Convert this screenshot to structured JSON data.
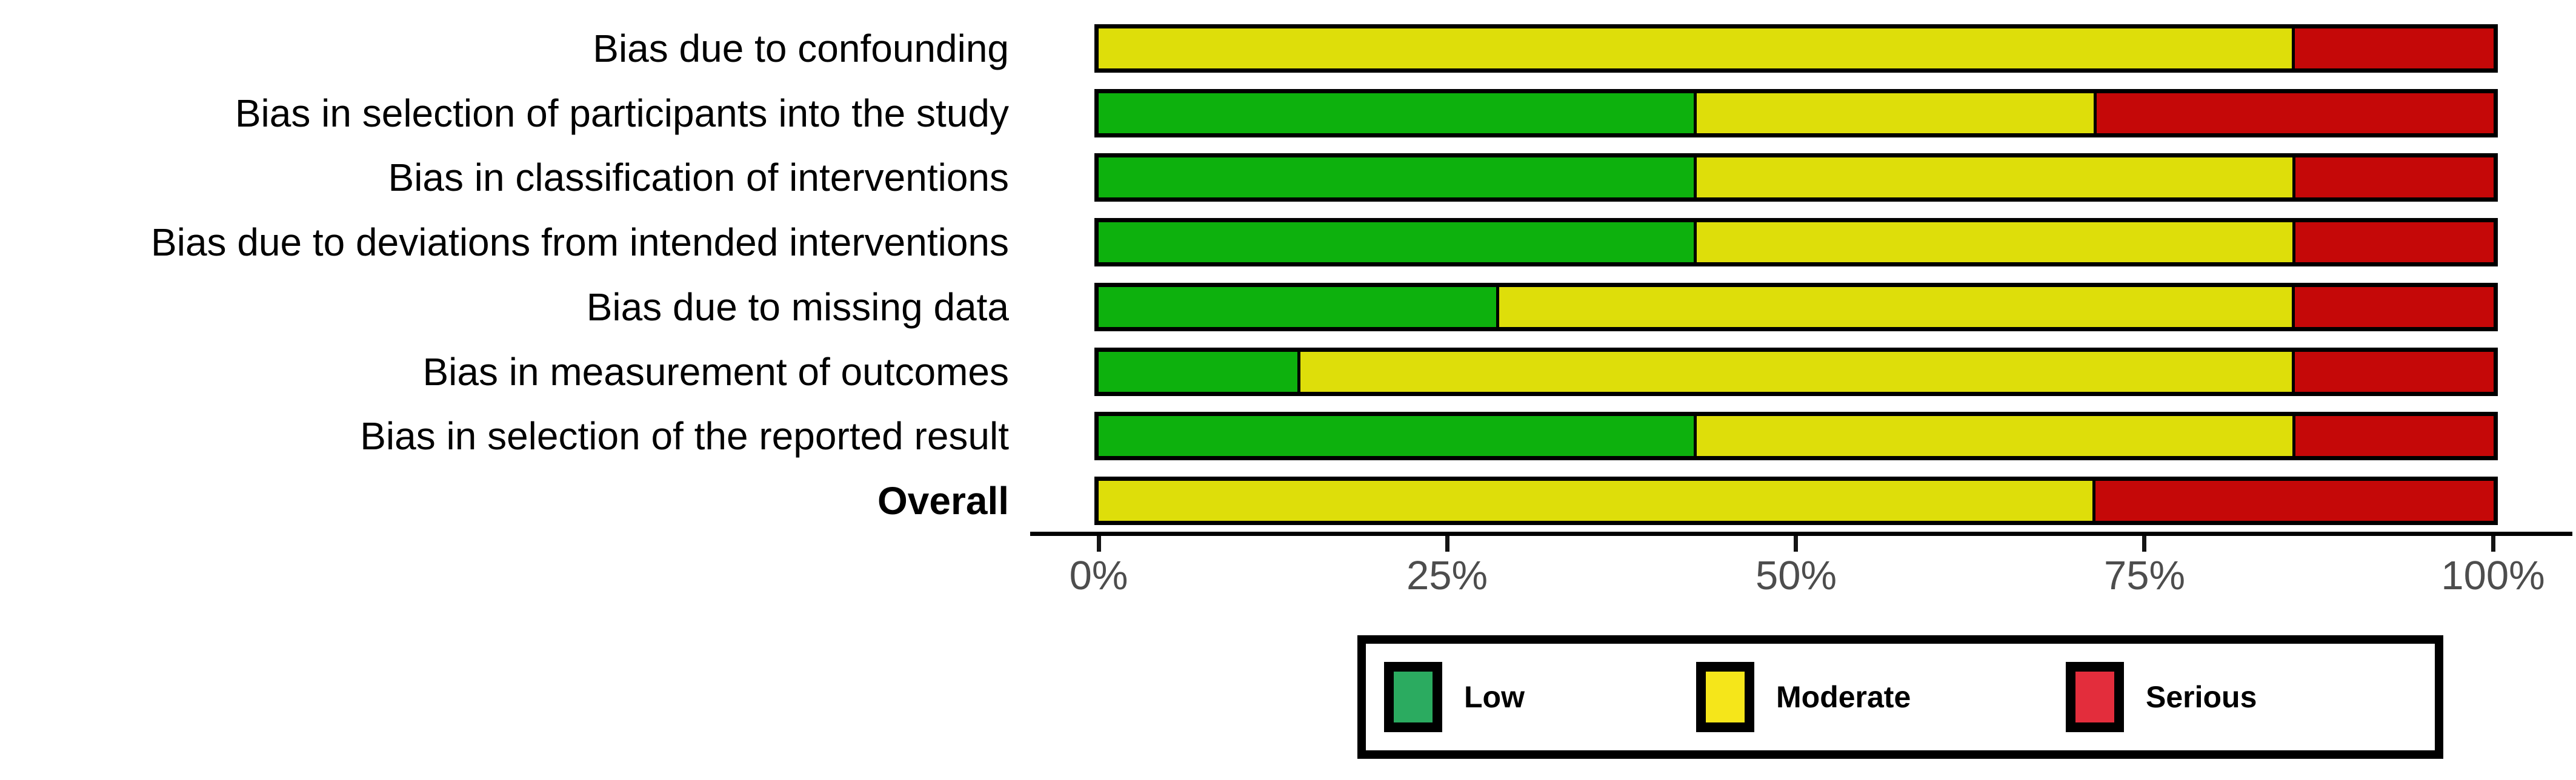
{
  "chart_data": {
    "type": "bar",
    "variant": "horizontal-stacked-percent",
    "title": "",
    "categories": [
      "Bias due to confounding",
      "Bias in selection of participants into the study",
      "Bias in classification of interventions",
      "Bias due to deviations from intended interventions",
      "Bias due to missing data",
      "Bias in measurement of outcomes",
      "Bias in selection of the reported result",
      "Overall"
    ],
    "bold_category": "Overall",
    "series": [
      {
        "name": "Low",
        "bar_color": "#0DB10D",
        "legend_color": "#2BAB60",
        "values": [
          0,
          42.9,
          42.9,
          42.9,
          28.6,
          14.3,
          42.9,
          0
        ]
      },
      {
        "name": "Moderate",
        "bar_color": "#DEDE0A",
        "legend_color": "#F5E61A",
        "values": [
          85.7,
          28.6,
          42.9,
          42.9,
          57.1,
          71.4,
          42.9,
          71.4
        ]
      },
      {
        "name": "Serious",
        "bar_color": "#C50808",
        "legend_color": "#E32D3C",
        "values": [
          14.3,
          28.6,
          14.3,
          14.3,
          14.3,
          14.3,
          14.3,
          28.6
        ]
      }
    ],
    "x_ticks": [
      "0%",
      "25%",
      "50%",
      "75%",
      "100%"
    ],
    "x_tick_values": [
      0,
      25,
      50,
      75,
      100
    ],
    "xlim": [
      0,
      100
    ],
    "xlabel": "",
    "ylabel": "",
    "grid": false,
    "legend_position": "bottom",
    "colors": {
      "axis": "#000000",
      "tick_label": "#4D4D4D",
      "bar_border": "#000000",
      "background": "#FFFFFF"
    }
  }
}
